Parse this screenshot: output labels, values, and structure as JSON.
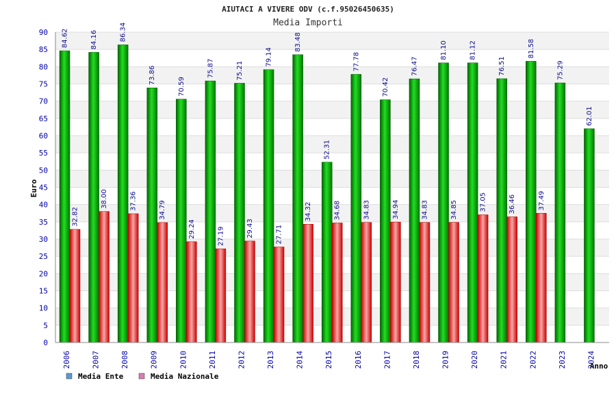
{
  "chart_data": {
    "type": "bar",
    "title": "AIUTACI A VIVERE ODV (c.f.95026450635)",
    "subtitle": "Media Importi",
    "xlabel": "Anno",
    "ylabel": "Euro",
    "ylim": [
      0,
      90
    ],
    "ytick_step": 5,
    "grid": true,
    "legend_position": "bottom-left",
    "categories": [
      "2006",
      "2007",
      "2008",
      "2009",
      "2010",
      "2011",
      "2012",
      "2013",
      "2014",
      "2015",
      "2016",
      "2017",
      "2018",
      "2019",
      "2020",
      "2021",
      "2022",
      "2023",
      "2024"
    ],
    "series": [
      {
        "name": "Media Ente",
        "legend_color": "#5b9bd5",
        "bar_color": "#11bb11",
        "values": [
          84.62,
          84.16,
          86.34,
          73.86,
          70.59,
          75.87,
          75.21,
          79.14,
          83.48,
          52.31,
          77.78,
          70.42,
          76.47,
          81.1,
          81.12,
          76.51,
          81.58,
          75.29,
          62.01
        ],
        "labels": [
          "84.62",
          "84.16",
          "86.34",
          "73.86",
          "70.59",
          "75.87",
          "75.21",
          "79.14",
          "83.48",
          "52.31",
          "77.78",
          "70.42",
          "76.47",
          "81.10",
          "81.12",
          "76.51",
          "81.58",
          "75.29",
          "62.01"
        ]
      },
      {
        "name": "Media Nazionale",
        "legend_color": "#d97fb0",
        "bar_color": "#dd2233",
        "values": [
          32.82,
          38.0,
          37.36,
          34.79,
          29.24,
          27.19,
          29.43,
          27.71,
          34.32,
          34.68,
          34.83,
          34.94,
          34.83,
          34.85,
          37.05,
          36.46,
          37.49,
          null,
          null
        ],
        "labels": [
          "32.82",
          "38.00",
          "37.36",
          "34.79",
          "29.24",
          "27.19",
          "29.43",
          "27.71",
          "34.32",
          "34.68",
          "34.83",
          "34.94",
          "34.83",
          "34.85",
          "37.05",
          "36.46",
          "37.49",
          "",
          ""
        ]
      }
    ]
  }
}
